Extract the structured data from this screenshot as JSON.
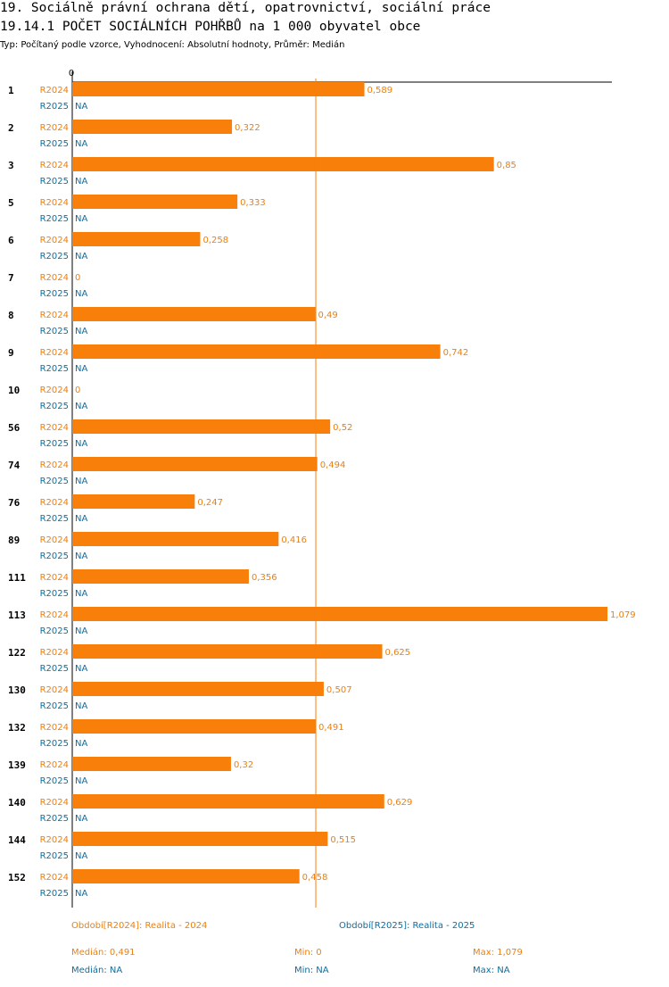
{
  "header": {
    "title1": "19. Sociálně právní ochrana dětí, opatrovnictví, sociální práce",
    "title2": "19.14.1 POČET SOCIÁLNÍCH POHŘBŮ na 1 000 obyvatel obce",
    "subtitle": "Typ: Počítaný podle vzorce, Vyhodnocení: Absolutní hodnoty, Průměr: Medián"
  },
  "colors": {
    "r2024": "#f77f0a",
    "r2025": "#0b6fa3",
    "label2024": "#f07f09"
  },
  "chart_data": {
    "type": "bar",
    "orientation": "horizontal",
    "title": "19.14.1 POČET SOCIÁLNÍCH POHŘBŮ na 1 000 obyvatel obce",
    "xlim": [
      0,
      1.079
    ],
    "zero_label": "0",
    "categories": [
      "1",
      "2",
      "3",
      "5",
      "6",
      "7",
      "8",
      "9",
      "10",
      "56",
      "74",
      "76",
      "89",
      "111",
      "113",
      "122",
      "130",
      "132",
      "139",
      "140",
      "144",
      "152"
    ],
    "series": [
      {
        "name": "R2024",
        "values": [
          0.589,
          0.322,
          0.85,
          0.333,
          0.258,
          0,
          0.49,
          0.742,
          0,
          0.52,
          0.494,
          0.247,
          0.416,
          0.356,
          1.079,
          0.625,
          0.507,
          0.491,
          0.32,
          0.629,
          0.515,
          0.458
        ],
        "labels": [
          "0,589",
          "0,322",
          "0,85",
          "0,333",
          "0,258",
          "0",
          "0,49",
          "0,742",
          "0",
          "0,52",
          "0,494",
          "0,247",
          "0,416",
          "0,356",
          "1,079",
          "0,625",
          "0,507",
          "0,491",
          "0,32",
          "0,629",
          "0,515",
          "0,458"
        ]
      },
      {
        "name": "R2025",
        "values": [
          null,
          null,
          null,
          null,
          null,
          null,
          null,
          null,
          null,
          null,
          null,
          null,
          null,
          null,
          null,
          null,
          null,
          null,
          null,
          null,
          null,
          null
        ],
        "labels": [
          "NA",
          "NA",
          "NA",
          "NA",
          "NA",
          "NA",
          "NA",
          "NA",
          "NA",
          "NA",
          "NA",
          "NA",
          "NA",
          "NA",
          "NA",
          "NA",
          "NA",
          "NA",
          "NA",
          "NA",
          "NA",
          "NA"
        ]
      }
    ],
    "median_line": 0.491
  },
  "legend": {
    "period2024": "Období[R2024]: Realita - 2024",
    "period2025": "Období[R2025]: Realita - 2025",
    "median2024": "Medián: 0,491",
    "min2024": "Min: 0",
    "max2024": "Max: 1,079",
    "median2025": "Medián: NA",
    "min2025": "Min: NA",
    "max2025": "Max: NA"
  }
}
